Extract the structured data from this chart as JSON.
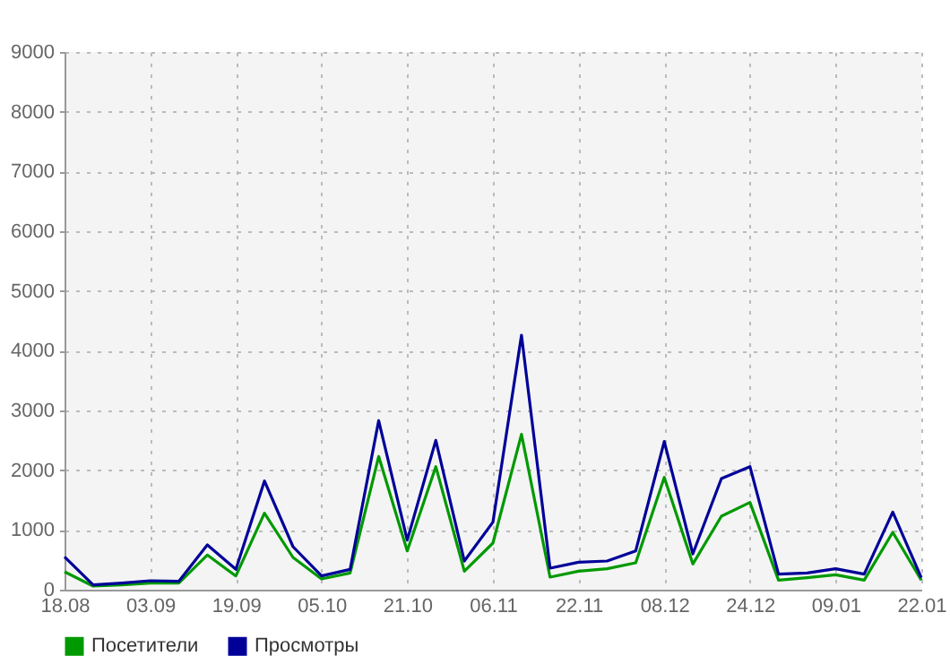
{
  "chart_data": {
    "type": "line",
    "categories": [
      "18.08",
      null,
      null,
      "03.09",
      null,
      null,
      "19.09",
      null,
      null,
      "05.10",
      null,
      null,
      "21.10",
      null,
      null,
      "06.11",
      null,
      null,
      "22.11",
      null,
      null,
      "08.12",
      null,
      null,
      "24.12",
      null,
      null,
      "09.01",
      null,
      null,
      "22.01"
    ],
    "series": [
      {
        "name": "Посетители",
        "color": "#009900",
        "values": [
          300,
          60,
          80,
          110,
          110,
          580,
          230,
          1280,
          540,
          180,
          280,
          2230,
          650,
          2060,
          310,
          780,
          2600,
          210,
          310,
          350,
          450,
          1880,
          430,
          1230,
          1460,
          160,
          200,
          250,
          160,
          960,
          160
        ]
      },
      {
        "name": "Просмотры",
        "color": "#000099",
        "values": [
          550,
          80,
          110,
          150,
          140,
          750,
          340,
          1820,
          720,
          230,
          340,
          2830,
          830,
          2500,
          480,
          1130,
          4260,
          360,
          460,
          480,
          650,
          2480,
          600,
          1860,
          2060,
          260,
          280,
          350,
          260,
          1300,
          200
        ]
      }
    ],
    "ylim": [
      0,
      9000
    ],
    "yticks": [
      0,
      1000,
      2000,
      3000,
      4000,
      5000,
      6000,
      7000,
      8000,
      9000
    ],
    "grid": true,
    "legend": "bottom",
    "marker": "none",
    "line_style": "solid"
  }
}
